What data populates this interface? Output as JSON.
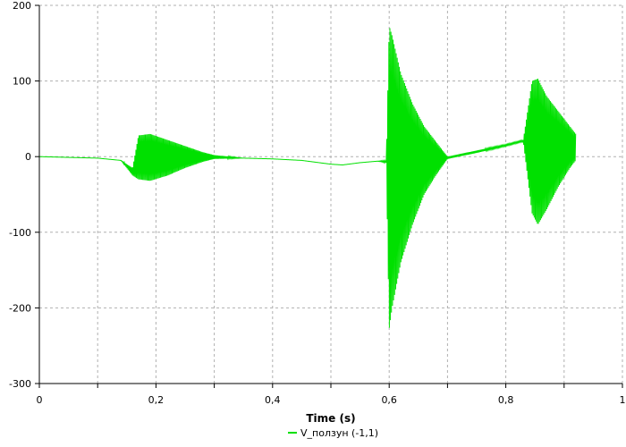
{
  "chart_data": {
    "type": "line",
    "title": "",
    "xlabel": "Time (s)",
    "ylabel": "",
    "xlim": [
      0,
      1
    ],
    "ylim": [
      -300,
      200
    ],
    "x_ticks": [
      0,
      0.1,
      0.2,
      0.3,
      0.4,
      0.5,
      0.6,
      0.7,
      0.8,
      0.9,
      1.0
    ],
    "x_tick_labels": [
      "0",
      "",
      "0,2",
      "",
      "0,4",
      "",
      "0,6",
      "",
      "0,8",
      "",
      "1"
    ],
    "y_ticks": [
      -300,
      -200,
      -100,
      0,
      100,
      200
    ],
    "y_tick_labels": [
      "-300",
      "-200",
      "-100",
      "0",
      "100",
      "200"
    ],
    "grid": true,
    "legend_position": "bottom-center",
    "series": [
      {
        "name": "V_ползун (-1,1)",
        "color": "#00e000",
        "envelope_x": [
          0,
          0.05,
          0.1,
          0.14,
          0.16,
          0.17,
          0.19,
          0.22,
          0.25,
          0.28,
          0.3,
          0.35,
          0.4,
          0.45,
          0.5,
          0.52,
          0.55,
          0.58,
          0.595,
          0.6,
          0.605,
          0.62,
          0.64,
          0.66,
          0.68,
          0.7,
          0.75,
          0.8,
          0.83,
          0.845,
          0.855,
          0.87,
          0.89,
          0.91,
          0.92
        ],
        "upper": [
          0,
          -1,
          -2,
          -5,
          -15,
          28,
          30,
          22,
          14,
          6,
          2,
          -2,
          -3,
          -5,
          -10,
          -11,
          -8,
          -6,
          -5,
          173,
          160,
          110,
          70,
          40,
          20,
          0,
          8,
          16,
          22,
          100,
          103,
          80,
          60,
          40,
          30
        ],
        "lower": [
          0,
          -1,
          -2,
          -5,
          -25,
          -30,
          -32,
          -25,
          -15,
          -7,
          -3,
          -2,
          -3,
          -5,
          -10,
          -11,
          -8,
          -6,
          -8,
          -228,
          -200,
          -140,
          -90,
          -50,
          -25,
          -3,
          5,
          14,
          20,
          -75,
          -90,
          -70,
          -40,
          -15,
          -5
        ]
      }
    ]
  }
}
